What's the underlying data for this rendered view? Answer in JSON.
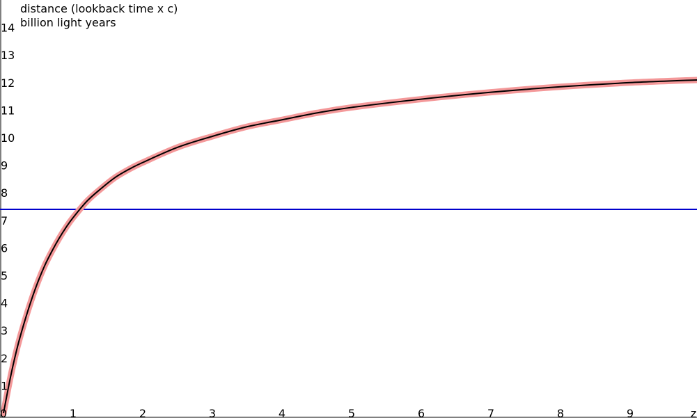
{
  "chart_data": {
    "type": "line",
    "ylabel_line1": "distance (lookback time x c)",
    "ylabel_line2": "billion light years",
    "xlabel": "z",
    "xlim": [
      0,
      10
    ],
    "ylim": [
      0,
      15
    ],
    "x_ticks": [
      "0",
      "1",
      "2",
      "3",
      "4",
      "5",
      "6",
      "7",
      "8",
      "9"
    ],
    "y_ticks": [
      "1",
      "2",
      "3",
      "4",
      "5",
      "6",
      "7",
      "8",
      "9",
      "10",
      "11",
      "12",
      "13",
      "14"
    ],
    "reference_line": {
      "y": 7.4,
      "color": "#0000cc"
    },
    "series": [
      {
        "color": "#000000",
        "highlight_color": "#f4999a",
        "x": [
          0,
          0.1,
          0.2,
          0.3,
          0.4,
          0.5,
          0.6,
          0.7,
          0.8,
          0.9,
          1.0,
          1.2,
          1.4,
          1.6,
          1.8,
          2.0,
          2.5,
          3.0,
          3.5,
          4.0,
          4.5,
          5.0,
          6.0,
          7.0,
          8.0,
          9.0,
          10.0
        ],
        "y": [
          0,
          1.3,
          2.4,
          3.3,
          4.1,
          4.8,
          5.4,
          5.9,
          6.35,
          6.75,
          7.1,
          7.7,
          8.15,
          8.55,
          8.85,
          9.1,
          9.65,
          10.05,
          10.4,
          10.65,
          10.9,
          11.1,
          11.4,
          11.65,
          11.85,
          12.0,
          12.1
        ]
      }
    ]
  }
}
